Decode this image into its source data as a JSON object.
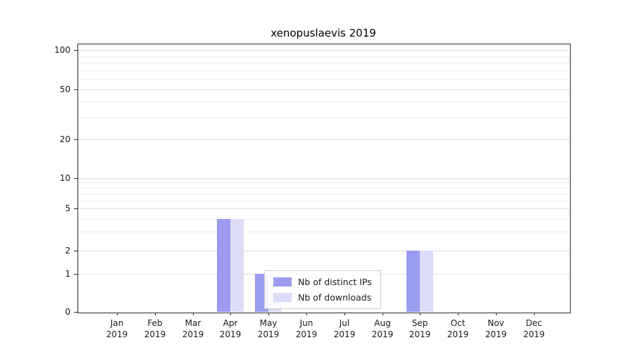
{
  "chart_data": {
    "type": "bar",
    "title": "xenopuslaevis 2019",
    "categories": [
      "Jan",
      "Feb",
      "Mar",
      "Apr",
      "May",
      "Jun",
      "Jul",
      "Aug",
      "Sep",
      "Oct",
      "Nov",
      "Dec"
    ],
    "year_label": "2019",
    "series": [
      {
        "name": "Nb of distinct IPs",
        "color": "#9b9bef",
        "values": [
          0,
          0,
          0,
          4,
          1,
          0,
          0,
          0,
          2,
          0,
          0,
          0
        ]
      },
      {
        "name": "Nb of downloads",
        "color": "#dcdcf8",
        "values": [
          0,
          0,
          0,
          4,
          1,
          0,
          0,
          0,
          2,
          0,
          0,
          0
        ]
      }
    ],
    "xlabel": "",
    "ylabel": "",
    "yscale": "symlog",
    "yticks": [
      0,
      1,
      2,
      5,
      10,
      20,
      50,
      100
    ],
    "ylim": [
      0,
      100
    ],
    "grid": "horizontal",
    "legend_position": "lower-center"
  }
}
